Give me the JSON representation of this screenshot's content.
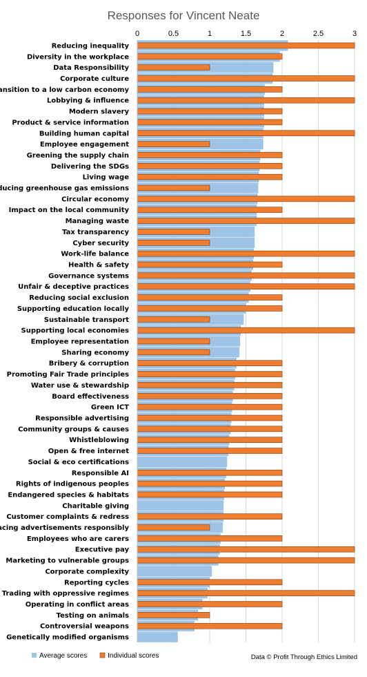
{
  "chart_data": {
    "type": "bar",
    "orientation": "horizontal",
    "title": "Responses for Vincent Neate",
    "xlim": [
      0,
      3
    ],
    "x_ticks": [
      "0",
      "0.5",
      "1",
      "1.5",
      "2",
      "2.5",
      "3"
    ],
    "grid": true,
    "legend_position": "bottom-left",
    "categories": [
      "Reducing inequality",
      "Diversity in the workplace",
      "Data Responsibility",
      "Corporate culture",
      "Transition to a low carbon economy",
      "Lobbying & influence",
      "Modern slavery",
      "Product & service information",
      "Building human capital",
      "Employee engagement",
      "Greening the supply chain",
      "Delivering the SDGs",
      "Living wage",
      "Reducing greenhouse gas emissions",
      "Circular economy",
      "Impact on the local community",
      "Managing waste",
      "Tax transparency",
      "Cyber security",
      "Work-life balance",
      "Health & safety",
      "Governance systems",
      "Unfair & deceptive practices",
      "Reducing social exclusion",
      "Supporting education locally",
      "Sustainable transport",
      "Supporting local economies",
      "Employee representation",
      "Sharing economy",
      "Bribery & corruption",
      "Promoting Fair Trade principles",
      "Water use & stewardship",
      "Board effectiveness",
      "Green ICT",
      "Responsible advertising",
      "Community groups & causes",
      "Whistleblowing",
      "Open & free internet",
      "Social & eco certifications",
      "Responsible AI",
      "Rights of indigenous peoples",
      "Endangered species & habitats",
      "Charitable giving",
      "Customer complaints & redress",
      "Placing advertisements responsibly",
      "Employees who are carers",
      "Executive pay",
      "Marketing to vulnerable groups",
      "Corporate complexity",
      "Reporting cycles",
      "Trading with oppressive regimes",
      "Operating in conflict areas",
      "Testing on animals",
      "Controversial weapons",
      "Genetically modified organisms"
    ],
    "series": [
      {
        "name": "Average scores",
        "color": "#9dc3e6",
        "values": [
          2.08,
          1.97,
          1.88,
          1.87,
          1.76,
          1.75,
          1.75,
          1.75,
          1.74,
          1.74,
          1.7,
          1.69,
          1.68,
          1.67,
          1.66,
          1.65,
          1.65,
          1.62,
          1.62,
          1.61,
          1.6,
          1.58,
          1.56,
          1.54,
          1.5,
          1.47,
          1.43,
          1.42,
          1.41,
          1.37,
          1.35,
          1.34,
          1.32,
          1.31,
          1.3,
          1.29,
          1.27,
          1.26,
          1.24,
          1.23,
          1.21,
          1.2,
          1.19,
          1.19,
          1.18,
          1.15,
          1.14,
          1.12,
          1.03,
          1.0,
          0.97,
          0.9,
          0.84,
          0.79,
          0.56
        ]
      },
      {
        "name": "Individual scores",
        "color": "#ed7d31",
        "values": [
          3,
          2,
          1,
          3,
          2,
          3,
          2,
          2,
          3,
          1,
          2,
          2,
          2,
          1,
          3,
          2,
          3,
          1,
          1,
          3,
          2,
          3,
          3,
          2,
          2,
          1,
          3,
          1,
          1,
          2,
          2,
          2,
          2,
          2,
          2,
          2,
          2,
          2,
          0,
          2,
          2,
          2,
          0,
          2,
          1,
          2,
          3,
          3,
          0,
          2,
          3,
          2,
          1,
          2,
          0
        ]
      }
    ],
    "credit": "Data © Profit Through Ethics Limited"
  }
}
